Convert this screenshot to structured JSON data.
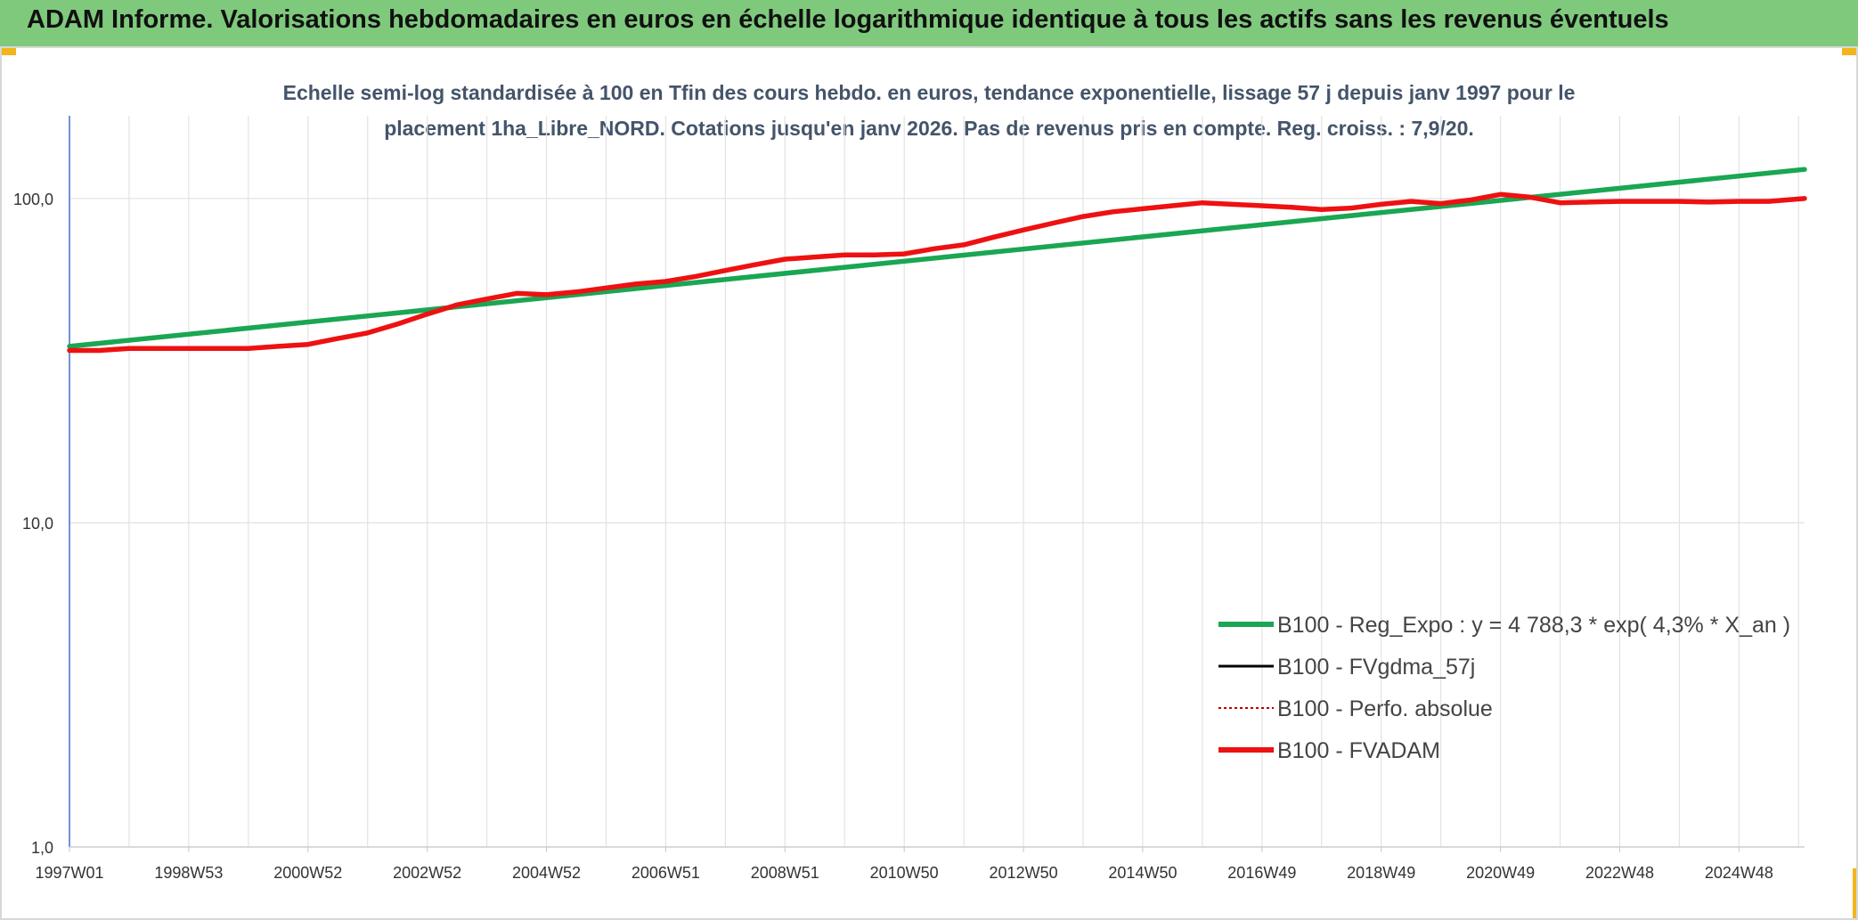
{
  "header": {
    "title": "ADAM Informe. Valorisations hebdomadaires en euros en échelle logarithmique identique à tous les actifs sans les revenus éventuels"
  },
  "chart_data": {
    "type": "line",
    "title_lines": [
      "Echelle semi-log standardisée à 100 en Tfin des cours hebdo. en euros, tendance exponentielle, lissage 57 j depuis janv 1997 pour le",
      "placement 1ha_Libre_NORD. Cotations jusqu'en janv 2026. Pas de revenus pris en compte. Reg. croiss. : 7,9/20."
    ],
    "y_scale": "log",
    "ylim": [
      1,
      180
    ],
    "y_ticks": [
      {
        "value": 1,
        "label": "1,0"
      },
      {
        "value": 10,
        "label": "10,0"
      },
      {
        "value": 100,
        "label": "100,0"
      }
    ],
    "xlim": [
      1997.0,
      2026.1
    ],
    "x_ticks": [
      {
        "value": 1997.0,
        "label": "1997W01"
      },
      {
        "value": 1999.0,
        "label": "1998W53"
      },
      {
        "value": 2001.0,
        "label": "2000W52"
      },
      {
        "value": 2003.0,
        "label": "2002W52"
      },
      {
        "value": 2005.0,
        "label": "2004W52"
      },
      {
        "value": 2007.0,
        "label": "2006W51"
      },
      {
        "value": 2009.0,
        "label": "2008W51"
      },
      {
        "value": 2011.0,
        "label": "2010W50"
      },
      {
        "value": 2013.0,
        "label": "2012W50"
      },
      {
        "value": 2015.0,
        "label": "2014W50"
      },
      {
        "value": 2017.0,
        "label": "2016W49"
      },
      {
        "value": 2019.0,
        "label": "2018W49"
      },
      {
        "value": 2021.0,
        "label": "2020W49"
      },
      {
        "value": 2023.0,
        "label": "2022W48"
      },
      {
        "value": 2025.0,
        "label": "2024W48"
      }
    ],
    "grid": true,
    "legend_position": "bottom-right",
    "series": [
      {
        "name": "B100 - Reg_Expo : y = 4 788,3 * exp( 4,3% *  X_an )",
        "color": "#1aa652",
        "style": "solid",
        "x": [
          1997.0,
          2026.1
        ],
        "values": [
          35.0,
          123.0
        ]
      },
      {
        "name": "B100 - FVgdma_57j",
        "color": "#000000",
        "style": "solid",
        "x": [],
        "values": []
      },
      {
        "name": "B100 - Perfo. absolue",
        "color": "#c00000",
        "style": "dotted",
        "x": [],
        "values": []
      },
      {
        "name": "B100 - FVADAM",
        "color": "#ee1111",
        "style": "solid",
        "x": [
          1997.0,
          1997.5,
          1998.0,
          1999.0,
          2000.0,
          2000.5,
          2001.0,
          2001.5,
          2002.0,
          2002.5,
          2003.0,
          2003.5,
          2004.0,
          2004.5,
          2005.0,
          2005.5,
          2006.0,
          2006.5,
          2007.0,
          2007.5,
          2008.0,
          2008.5,
          2009.0,
          2009.5,
          2010.0,
          2010.5,
          2011.0,
          2011.5,
          2012.0,
          2012.5,
          2013.0,
          2013.5,
          2014.0,
          2014.5,
          2015.0,
          2015.5,
          2016.0,
          2016.5,
          2017.0,
          2017.5,
          2018.0,
          2018.5,
          2019.0,
          2019.5,
          2020.0,
          2020.5,
          2021.0,
          2021.5,
          2022.0,
          2022.5,
          2023.0,
          2023.5,
          2024.0,
          2024.5,
          2025.0,
          2025.5,
          2026.1
        ],
        "values": [
          34.0,
          34.0,
          34.5,
          34.5,
          34.5,
          35.0,
          35.5,
          37.0,
          38.5,
          41.0,
          44.0,
          47.0,
          49.0,
          51.0,
          50.5,
          51.5,
          53.0,
          54.5,
          55.5,
          57.5,
          60.0,
          62.5,
          65.0,
          66.0,
          67.0,
          67.0,
          67.5,
          70.0,
          72.0,
          76.0,
          80.0,
          84.0,
          88.0,
          91.0,
          93.0,
          95.0,
          97.0,
          96.0,
          95.0,
          94.0,
          92.5,
          93.5,
          96.0,
          98.0,
          96.5,
          99.0,
          103.0,
          101.0,
          97.0,
          97.5,
          98.0,
          98.0,
          98.0,
          97.5,
          98.0,
          98.0,
          100.0
        ]
      }
    ]
  }
}
